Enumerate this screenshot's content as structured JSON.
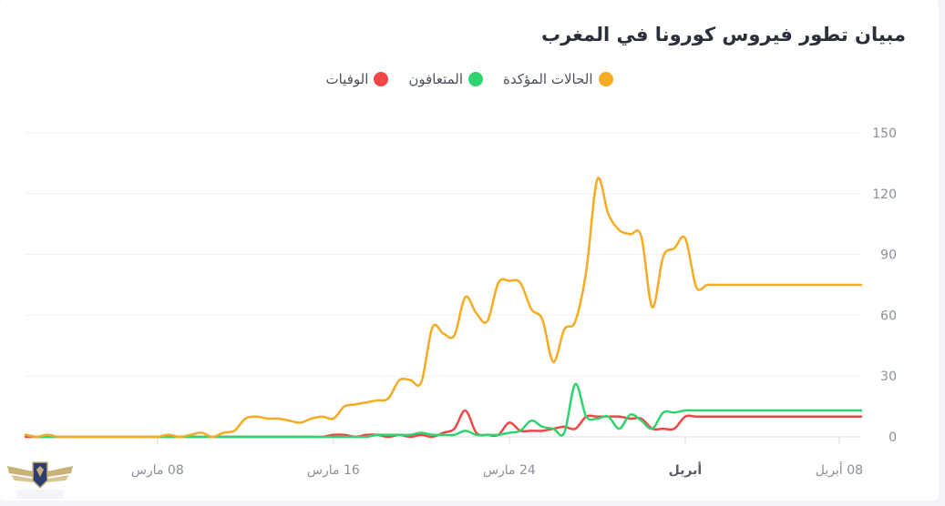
{
  "title": "مبيان تطور فيروس كورونا في المغرب",
  "legend": [
    {
      "label": "الحالات المؤكدة",
      "color": "#f5ab22"
    },
    {
      "label": "المتعافون",
      "color": "#2fd46f"
    },
    {
      "label": "الوفيات",
      "color": "#f04646"
    }
  ],
  "chart_data": {
    "type": "line",
    "title": "مبيان تطور فيروس كورونا في المغرب",
    "xlabel": "",
    "ylabel": "",
    "ylim": [
      0,
      150
    ],
    "yticks": [
      0,
      30,
      60,
      90,
      120,
      150
    ],
    "grid": true,
    "legend_position": "top-center",
    "x_tick_labels": [
      {
        "day": 6,
        "label": "08 مارس",
        "bold": false
      },
      {
        "day": 14,
        "label": "16 مارس",
        "bold": false
      },
      {
        "day": 22,
        "label": "24 مارس",
        "bold": false
      },
      {
        "day": 30,
        "label": "أبريل",
        "bold": true
      },
      {
        "day": 37,
        "label": "08 أبريل",
        "bold": false
      }
    ],
    "x": [
      0,
      0.5,
      1,
      1.5,
      2,
      2.5,
      3,
      3.5,
      4,
      4.5,
      5,
      5.5,
      6,
      6.5,
      7,
      7.5,
      8,
      8.5,
      9,
      9.5,
      10,
      10.5,
      11,
      11.5,
      12,
      12.5,
      13,
      13.5,
      14,
      14.5,
      15,
      15.5,
      16,
      16.5,
      17,
      17.5,
      18,
      18.5,
      19,
      19.5,
      20,
      20.5,
      21,
      21.5,
      22,
      22.5,
      23,
      23.5,
      24,
      24.5,
      25,
      25.5,
      26,
      26.5,
      27,
      27.5,
      28,
      28.5,
      29,
      29.5,
      30,
      30.5,
      31,
      31.5,
      32,
      32.5,
      33,
      33.5,
      34,
      34.5,
      35,
      35.5,
      36,
      36.5,
      37,
      37.5,
      38
    ],
    "series": [
      {
        "name": "الحالات المؤكدة",
        "color": "#f5ab22",
        "values": [
          1,
          0,
          1,
          0,
          0,
          0,
          0,
          0,
          0,
          0,
          0,
          0,
          0,
          1,
          0,
          1,
          2,
          0,
          2,
          3,
          9,
          10,
          9,
          9,
          8,
          7,
          9,
          10,
          9,
          15,
          16,
          17,
          18,
          19,
          28,
          28,
          27,
          54,
          51,
          50,
          69,
          61,
          57,
          76,
          77,
          76,
          63,
          58,
          37,
          53,
          57,
          82,
          127,
          110,
          102,
          100,
          99,
          64,
          89,
          93,
          98,
          74,
          75,
          75,
          75,
          75,
          75,
          75,
          75,
          75,
          75,
          75,
          75,
          75,
          75,
          75,
          75
        ]
      },
      {
        "name": "المتعافون",
        "color": "#2fd46f",
        "values": [
          1,
          0,
          0,
          0,
          0,
          0,
          0,
          0,
          0,
          0,
          0,
          0,
          0,
          0,
          0,
          0,
          0,
          0,
          0,
          0,
          0,
          0,
          0,
          0,
          0,
          0,
          0,
          0,
          0,
          0,
          0,
          0,
          1,
          1,
          1,
          1,
          2,
          1,
          1,
          1,
          3,
          1,
          1,
          1,
          2,
          3,
          8,
          5,
          4,
          2,
          26,
          10,
          9,
          10,
          4,
          11,
          8,
          4,
          12,
          12,
          13,
          13,
          13,
          13,
          13,
          13,
          13,
          13,
          13,
          13,
          13,
          13,
          13,
          13,
          13,
          13,
          13
        ]
      },
      {
        "name": "الوفيات",
        "color": "#f04646",
        "values": [
          0,
          0,
          0,
          0,
          0,
          0,
          0,
          0,
          0,
          0,
          0,
          0,
          0,
          0,
          0,
          0,
          0,
          0,
          0,
          0,
          0,
          0,
          0,
          0,
          0,
          0,
          0,
          0,
          1,
          1,
          0,
          1,
          1,
          0,
          1,
          0,
          1,
          0,
          2,
          4,
          13,
          2,
          1,
          1,
          7,
          3,
          3,
          3,
          4,
          5,
          4,
          10,
          10,
          10,
          10,
          9,
          9,
          4,
          4,
          4,
          10,
          10,
          10,
          10,
          10,
          10,
          10,
          10,
          10,
          10,
          10,
          10,
          10,
          10,
          10,
          10,
          10
        ]
      }
    ]
  }
}
